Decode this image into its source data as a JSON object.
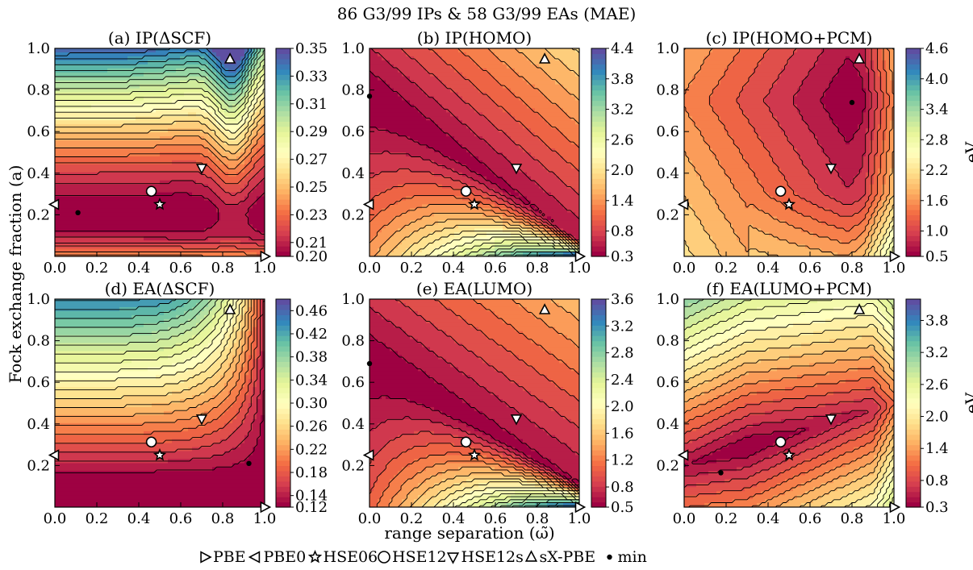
{
  "figure": {
    "suptitle": "86 G3/99 IPs & 58 G3/99 EAs (MAE)",
    "xlabel": "range separation (ω̃)",
    "ylabel": "Fock exchange fraction (a)",
    "colorbar_unit": "eV"
  },
  "legend": [
    {
      "marker": "tri-right",
      "label": "PBE"
    },
    {
      "marker": "tri-left",
      "label": "PBE0"
    },
    {
      "marker": "star",
      "label": "HSE06"
    },
    {
      "marker": "circle",
      "label": "HSE12"
    },
    {
      "marker": "tri-down",
      "label": "HSE12s"
    },
    {
      "marker": "tri-up",
      "label": "sX-PBE"
    },
    {
      "marker": "dot",
      "label": "min"
    }
  ],
  "chart_data": [
    {
      "type": "heatmap",
      "title": "(a) IP(ΔSCF)",
      "xlim": [
        0,
        1
      ],
      "ylim": [
        0,
        1
      ],
      "xticks": [
        "0.0",
        "0.2",
        "0.4",
        "0.6",
        "0.8",
        "1.0"
      ],
      "yticks": [
        "0.2",
        "0.4",
        "0.6",
        "0.8",
        "1.0"
      ],
      "colorbar": {
        "ticks": [
          "0.20",
          "0.21",
          "0.23",
          "0.25",
          "0.27",
          "0.29",
          "0.31",
          "0.33",
          "0.35"
        ],
        "range": [
          0.2,
          0.35
        ],
        "show_unit": false
      },
      "colormap": "Spectral",
      "min": {
        "x": 0.11,
        "y": 0.21
      },
      "markers": {
        "PBE": [
          1.0,
          0.0
        ],
        "PBE0": [
          0.0,
          0.25
        ],
        "HSE06": [
          0.5,
          0.25
        ],
        "HSE12": [
          0.46,
          0.313
        ],
        "HSE12s": [
          0.7,
          0.425
        ],
        "sX-PBE": [
          0.835,
          0.948
        ]
      }
    },
    {
      "type": "heatmap",
      "title": "(b) IP(HOMO)",
      "xlim": [
        0,
        1
      ],
      "ylim": [
        0,
        1
      ],
      "xticks": [
        "0.0",
        "0.2",
        "0.4",
        "0.6",
        "0.8",
        "1.0"
      ],
      "yticks": [
        "0.2",
        "0.4",
        "0.6",
        "0.8",
        "1.0"
      ],
      "colorbar": {
        "ticks": [
          "0.3",
          "0.8",
          "1.4",
          "2.0",
          "2.6",
          "3.2",
          "3.8",
          "4.4"
        ],
        "range": [
          0.3,
          4.4
        ],
        "show_unit": false
      },
      "colormap": "Spectral",
      "min": {
        "x": 0.0,
        "y": 0.77
      },
      "markers": {
        "PBE": [
          1.0,
          0.0
        ],
        "PBE0": [
          0.0,
          0.25
        ],
        "HSE06": [
          0.5,
          0.25
        ],
        "HSE12": [
          0.46,
          0.313
        ],
        "HSE12s": [
          0.7,
          0.425
        ],
        "sX-PBE": [
          0.835,
          0.948
        ]
      }
    },
    {
      "type": "heatmap",
      "title": "(c) IP(HOMO+PCM)",
      "xlim": [
        0,
        1
      ],
      "ylim": [
        0,
        1
      ],
      "xticks": [
        "0.0",
        "0.2",
        "0.4",
        "0.6",
        "0.8",
        "1.0"
      ],
      "yticks": [
        "0.2",
        "0.4",
        "0.6",
        "0.8",
        "1.0"
      ],
      "colorbar": {
        "ticks": [
          "0.5",
          "1.0",
          "1.6",
          "2.2",
          "2.8",
          "3.4",
          "4.0",
          "4.6"
        ],
        "range": [
          0.5,
          4.6
        ],
        "show_unit": true
      },
      "colormap": "Spectral",
      "min": {
        "x": 0.8,
        "y": 0.74
      },
      "markers": {
        "PBE": [
          1.0,
          0.0
        ],
        "PBE0": [
          0.0,
          0.25
        ],
        "HSE06": [
          0.5,
          0.25
        ],
        "HSE12": [
          0.46,
          0.313
        ],
        "HSE12s": [
          0.7,
          0.425
        ],
        "sX-PBE": [
          0.835,
          0.948
        ]
      }
    },
    {
      "type": "heatmap",
      "title": "(d) EA(ΔSCF)",
      "xlim": [
        0,
        1
      ],
      "ylim": [
        0,
        1
      ],
      "xticks": [
        "0.0",
        "0.2",
        "0.4",
        "0.6",
        "0.8",
        "1.0"
      ],
      "yticks": [
        "0.2",
        "0.4",
        "0.6",
        "0.8",
        "1.0"
      ],
      "colorbar": {
        "ticks": [
          "0.12",
          "0.14",
          "0.18",
          "0.22",
          "0.26",
          "0.30",
          "0.34",
          "0.38",
          "0.42",
          "0.46"
        ],
        "range": [
          0.12,
          0.48
        ],
        "show_unit": false
      },
      "colormap": "Spectral",
      "min": {
        "x": 0.925,
        "y": 0.21
      },
      "markers": {
        "PBE": [
          1.0,
          0.0
        ],
        "PBE0": [
          0.0,
          0.25
        ],
        "HSE06": [
          0.5,
          0.25
        ],
        "HSE12": [
          0.46,
          0.313
        ],
        "HSE12s": [
          0.7,
          0.425
        ],
        "sX-PBE": [
          0.835,
          0.948
        ]
      }
    },
    {
      "type": "heatmap",
      "title": "(e) EA(LUMO)",
      "xlim": [
        0,
        1
      ],
      "ylim": [
        0,
        1
      ],
      "xticks": [
        "0.0",
        "0.2",
        "0.4",
        "0.6",
        "0.8",
        "1.0"
      ],
      "yticks": [
        "0.2",
        "0.4",
        "0.6",
        "0.8",
        "1.0"
      ],
      "colorbar": {
        "ticks": [
          "0.5",
          "0.8",
          "1.2",
          "1.6",
          "2.0",
          "2.4",
          "2.8",
          "3.2",
          "3.6"
        ],
        "range": [
          0.5,
          3.6
        ],
        "show_unit": false
      },
      "colormap": "Spectral",
      "min": {
        "x": 0.0,
        "y": 0.69
      },
      "markers": {
        "PBE": [
          1.0,
          0.0
        ],
        "PBE0": [
          0.0,
          0.25
        ],
        "HSE06": [
          0.5,
          0.25
        ],
        "HSE12": [
          0.46,
          0.313
        ],
        "HSE12s": [
          0.7,
          0.425
        ],
        "sX-PBE": [
          0.835,
          0.948
        ]
      }
    },
    {
      "type": "heatmap",
      "title": "(f) EA(LUMO+PCM)",
      "xlim": [
        0,
        1
      ],
      "ylim": [
        0,
        1
      ],
      "xticks": [
        "0.0",
        "0.2",
        "0.4",
        "0.6",
        "0.8",
        "1.0"
      ],
      "yticks": [
        "0.2",
        "0.4",
        "0.6",
        "0.8",
        "1.0"
      ],
      "colorbar": {
        "ticks": [
          "0.3",
          "0.8",
          "1.4",
          "2.0",
          "2.6",
          "3.2",
          "3.8"
        ],
        "range": [
          0.3,
          4.2
        ],
        "show_unit": true
      },
      "colormap": "Spectral",
      "min": {
        "x": 0.175,
        "y": 0.165
      },
      "markers": {
        "PBE": [
          1.0,
          0.0
        ],
        "PBE0": [
          0.0,
          0.25
        ],
        "HSE06": [
          0.5,
          0.25
        ],
        "HSE12": [
          0.46,
          0.313
        ],
        "HSE12s": [
          0.7,
          0.425
        ],
        "sX-PBE": [
          0.835,
          0.948
        ]
      }
    }
  ]
}
